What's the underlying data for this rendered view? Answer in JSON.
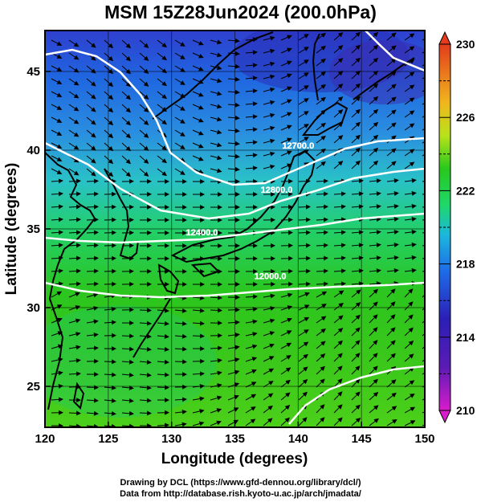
{
  "title": "MSM 15Z28Jun2024 (200.0hPa)",
  "axes": {
    "xlabel": "Longitude (degrees)",
    "ylabel": "Latitude  (degrees)",
    "x_ticks": [
      120,
      125,
      130,
      135,
      140,
      145,
      150
    ],
    "y_ticks": [
      25,
      30,
      35,
      40,
      45
    ],
    "xlim": [
      120,
      150
    ],
    "ylim": [
      22.4,
      47.6
    ]
  },
  "colorbar": {
    "ticks": [
      210,
      214,
      218,
      222,
      226,
      230
    ],
    "range": [
      210,
      230
    ],
    "colors": [
      "#d81ccb",
      "#2b1fb5",
      "#1e6ce8",
      "#1bb8dc",
      "#1ed86a",
      "#28c81c",
      "#b8e31a",
      "#f1b61d",
      "#e33b1c"
    ]
  },
  "contour_labels": [
    {
      "text": "12000.0",
      "lon": 137.8,
      "lat": 31.8
    },
    {
      "text": "12400.0",
      "lon": 132.4,
      "lat": 34.6
    },
    {
      "text": "12800.0",
      "lon": 138.3,
      "lat": 37.3
    },
    {
      "text": "12700.0",
      "lon": 140.0,
      "lat": 40.1
    }
  ],
  "credits": [
    "Drawing by DCL (https://www.gfd-dennou.org/library/dcl/)",
    "Data from http://database.rish.kyoto-u.ac.jp/arch/jmadata/"
  ]
}
